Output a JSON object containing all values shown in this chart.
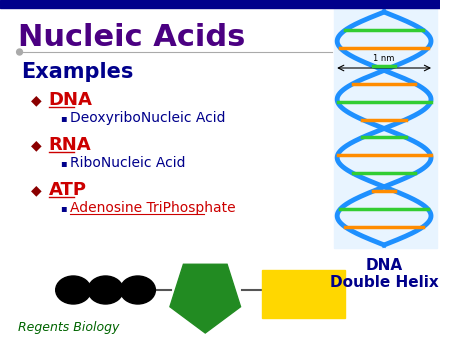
{
  "title": "Nucleic Acids",
  "title_color": "#4B0082",
  "title_fontsize": 22,
  "subtitle": "Examples",
  "subtitle_color": "#00008B",
  "subtitle_fontsize": 15,
  "bg_color": "#FFFFFF",
  "top_bar_color": "#00008B",
  "bullet_color": "#8B0000",
  "items": [
    {
      "label": "DNA",
      "sub": "DeoxyriboNucleic Acid",
      "sub_color": "#00008B",
      "sub_underline": false
    },
    {
      "label": "RNA",
      "sub": "RiboNucleic Acid",
      "sub_color": "#00008B",
      "sub_underline": false
    },
    {
      "label": "ATP",
      "sub": "Adenosine TriPhosphate",
      "sub_color": "#CC0000",
      "sub_underline": true
    }
  ],
  "item_label_color": "#CC0000",
  "item_fontsize": 13,
  "sub_fontsize": 10,
  "footer": "Regents Biology",
  "footer_color": "#006400",
  "footer_fontsize": 9,
  "dna_label": "DNA\nDouble Helix",
  "dna_label_color": "#00008B",
  "dna_label_fontsize": 11,
  "circle_color": "#000000",
  "pentagon_color": "#228B22",
  "rect_color": "#FFD700",
  "separator_color": "#AAAAAA",
  "helix_bg_color": "#E8F4FF",
  "helix_strand_color": "#1E90FF",
  "helix_link_colors": [
    "#FF8C00",
    "#32CD32"
  ],
  "connector_color": "#555555"
}
